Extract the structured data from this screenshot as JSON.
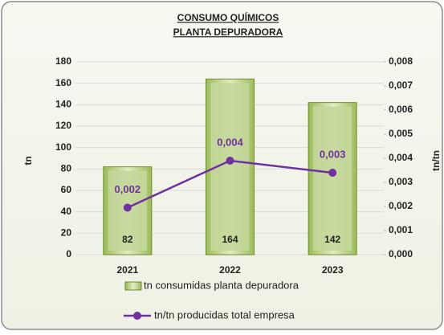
{
  "chart_data": {
    "type": "bar",
    "title": "CONSUMO QUÍMICOS",
    "subtitle": "PLANTA DEPURADORA",
    "ylabel": "tn",
    "y2label": "tn/tn",
    "categories": [
      "2021",
      "2022",
      "2023"
    ],
    "series": [
      {
        "name": "tn consumidas planta depuradora",
        "type": "bar",
        "color": "#c4d79b",
        "values": [
          82,
          164,
          142
        ]
      },
      {
        "name": "tn/tn producidas total empresa",
        "type": "line",
        "axis": "y2",
        "color": "#7030a0",
        "values": [
          0.00195,
          0.0039,
          0.0034
        ],
        "value_labels": [
          "0,002",
          "0,004",
          "0,003"
        ]
      }
    ],
    "ylim": [
      0,
      180
    ],
    "yticks": [
      0,
      20,
      40,
      60,
      80,
      100,
      120,
      140,
      160,
      180
    ],
    "y2lim": [
      0,
      0.008
    ],
    "y2ticks": [
      {
        "value": 0,
        "label": "0,000"
      },
      {
        "value": 0.001,
        "label": "0,001"
      },
      {
        "value": 0.002,
        "label": "0,002"
      },
      {
        "value": 0.003,
        "label": "0,003"
      },
      {
        "value": 0.004,
        "label": "0,004"
      },
      {
        "value": 0.005,
        "label": "0,005"
      },
      {
        "value": 0.006,
        "label": "0,006"
      },
      {
        "value": 0.007,
        "label": "0,007"
      },
      {
        "value": 0.008,
        "label": "0,008"
      }
    ],
    "grid": true,
    "legend": "bottom"
  }
}
